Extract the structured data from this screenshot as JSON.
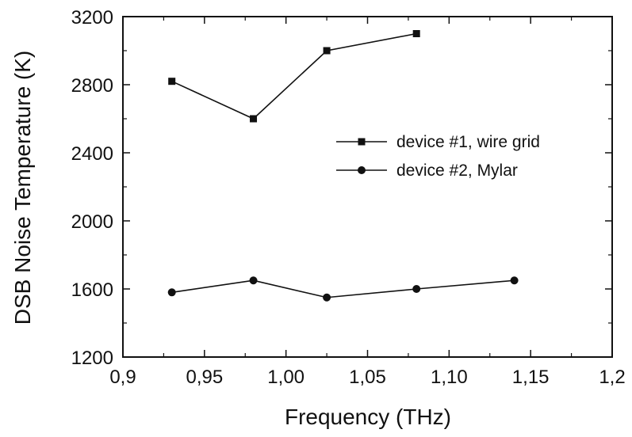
{
  "chart_data": {
    "type": "line",
    "xlabel": "Frequency (THz)",
    "ylabel": "DSB Noise Temperature (K)",
    "xlim": [
      0.9,
      1.2
    ],
    "ylim": [
      1200,
      3200
    ],
    "x_ticks": [
      0.9,
      0.95,
      1.0,
      1.05,
      1.1,
      1.15,
      1.2
    ],
    "x_tick_labels": [
      "0,9",
      "0,95",
      "1,00",
      "1,05",
      "1,10",
      "1,15",
      "1,2"
    ],
    "y_ticks": [
      1200,
      1600,
      2000,
      2400,
      2800,
      3200
    ],
    "y_tick_labels": [
      "1200",
      "1600",
      "2000",
      "2400",
      "2800",
      "3200"
    ],
    "grid": false,
    "legend_position": "right",
    "series": [
      {
        "name": "device #1, wire grid",
        "marker": "square",
        "x": [
          0.93,
          0.98,
          1.025,
          1.08
        ],
        "values": [
          2820,
          2600,
          3000,
          3100
        ]
      },
      {
        "name": "device #2, Mylar",
        "marker": "circle",
        "x": [
          0.93,
          0.98,
          1.025,
          1.08,
          1.14
        ],
        "values": [
          1580,
          1650,
          1550,
          1600,
          1650
        ]
      }
    ]
  }
}
